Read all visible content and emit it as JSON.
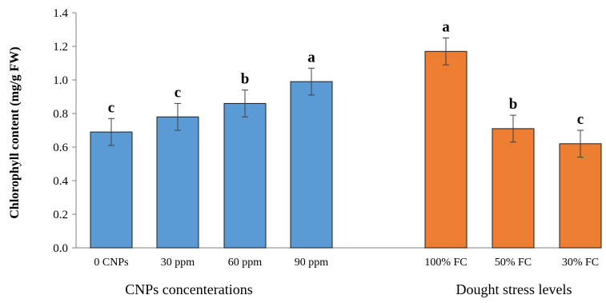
{
  "chart_data": {
    "type": "bar",
    "ylabel": "Chlorophyll content (mg/g FW)",
    "ylim": [
      0,
      1.4
    ],
    "yticks": [
      "0.0",
      "0.2",
      "0.4",
      "0.6",
      "0.8",
      "1.0",
      "1.2",
      "1.4"
    ],
    "grid": false,
    "groups": [
      {
        "name": "CNPs concenterations",
        "color": "#5b9bd5",
        "categories": [
          "0 CNPs",
          "30 ppm",
          "60 ppm",
          "90 ppm"
        ],
        "values": [
          0.69,
          0.78,
          0.86,
          0.99
        ],
        "errors": [
          0.08,
          0.08,
          0.08,
          0.08
        ],
        "letters": [
          "c",
          "c",
          "b",
          "a"
        ]
      },
      {
        "name": "Dought stress levels",
        "color": "#ed7d31",
        "categories": [
          "100% FC",
          "50% FC",
          "30% FC"
        ],
        "values": [
          1.17,
          0.71,
          0.62
        ],
        "errors": [
          0.08,
          0.08,
          0.08
        ],
        "letters": [
          "a",
          "b",
          "c"
        ]
      }
    ]
  }
}
